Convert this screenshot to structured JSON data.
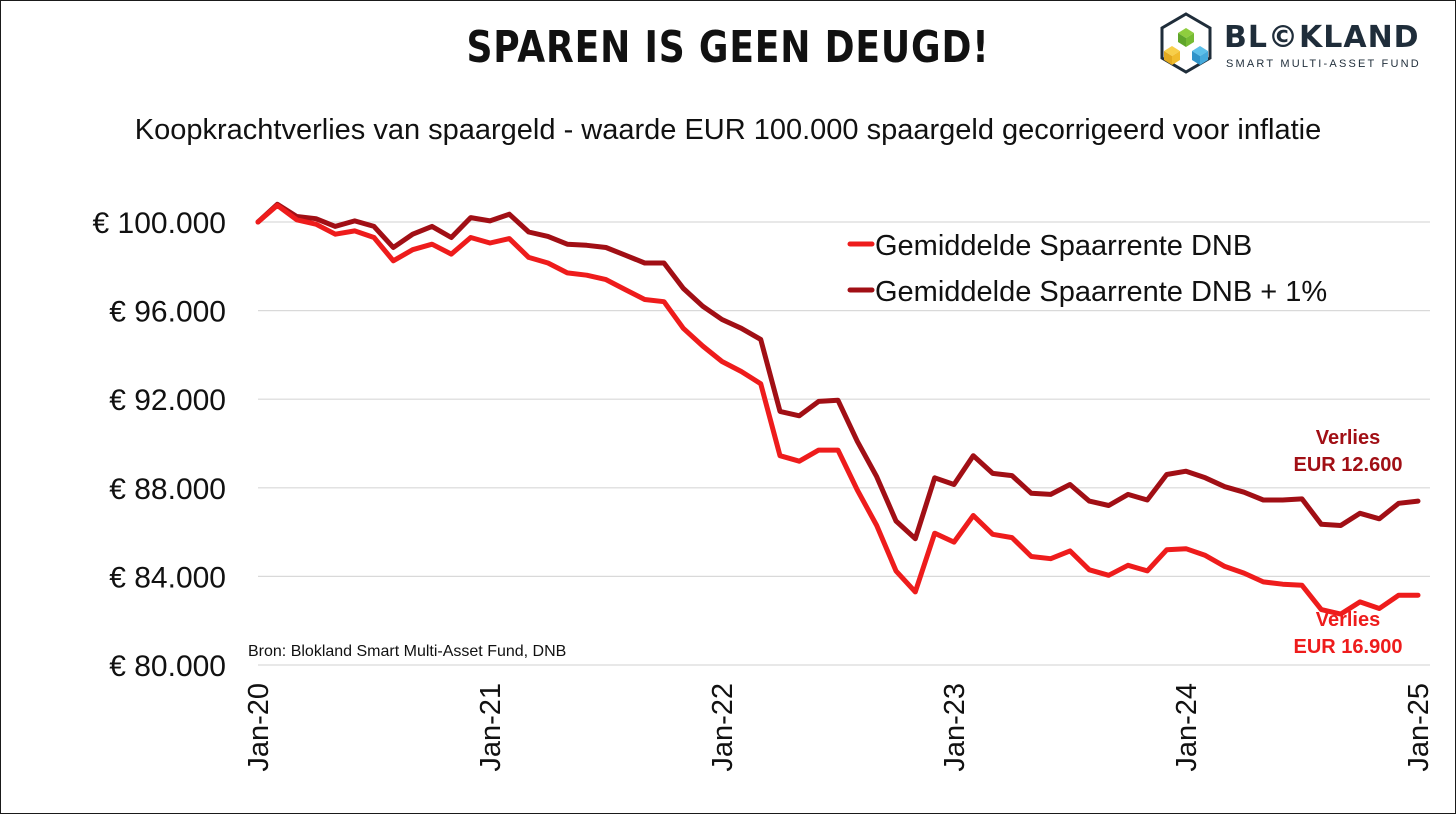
{
  "header": {
    "title": "SPAREN IS GEEN DEUGD!",
    "subtitle": "Koopkrachtverlies van spaargeld - waarde EUR 100.000 spaargeld gecorrigeerd voor inflatie"
  },
  "logo": {
    "name": "BL©KLAND",
    "tagline": "SMART MULTI-ASSET FUND"
  },
  "source_note": "Bron: Blokland Smart Multi-Asset Fund, DNB",
  "colors": {
    "series_dnb": "#ee1c1c",
    "series_dnb_plus": "#a10f15",
    "gridline": "#d9d9d9",
    "text": "#111111"
  },
  "chart_data": {
    "type": "line",
    "title": "Koopkrachtverlies van spaargeld - waarde EUR 100.000 spaargeld gecorrigeerd voor inflatie",
    "xlabel": "",
    "ylabel": "",
    "frequency": "monthly",
    "x_start": "Jan-20",
    "x_end": "Jan-25",
    "xlim": [
      0,
      60
    ],
    "ylim": [
      80000,
      100000
    ],
    "yticks": [
      80000,
      84000,
      88000,
      92000,
      96000,
      100000
    ],
    "ytick_labels": [
      "€ 80.000",
      "€ 84.000",
      "€ 88.000",
      "€ 92.000",
      "€ 96.000",
      "€ 100.000"
    ],
    "xticks": [
      0,
      12,
      24,
      36,
      48,
      60
    ],
    "xtick_labels": [
      "Jan-20",
      "Jan-21",
      "Jan-22",
      "Jan-23",
      "Jan-24",
      "Jan-25"
    ],
    "grid": true,
    "legend_position": "top-right",
    "series": [
      {
        "name": "Gemiddelde Spaarrente DNB",
        "color": "#ee1c1c",
        "values": [
          100000,
          100750,
          100100,
          99900,
          99450,
          99600,
          99300,
          98250,
          98750,
          99000,
          98550,
          99300,
          99050,
          99250,
          98400,
          98150,
          97700,
          97600,
          97400,
          96950,
          96500,
          96400,
          95200,
          94400,
          93700,
          93250,
          92700,
          89450,
          89200,
          89700,
          89700,
          87900,
          86300,
          84250,
          83300,
          85950,
          85550,
          86750,
          85900,
          85750,
          84900,
          84800,
          85150,
          84300,
          84050,
          84500,
          84250,
          85200,
          85250,
          84950,
          84450,
          84150,
          83750,
          83650,
          83600,
          82500,
          82300,
          82850,
          82550,
          83150,
          83150
        ]
      },
      {
        "name": "Gemiddelde Spaarrente DNB + 1%",
        "color": "#a10f15",
        "values": [
          100000,
          100800,
          100250,
          100150,
          99800,
          100050,
          99800,
          98850,
          99450,
          99800,
          99300,
          100200,
          100050,
          100350,
          99550,
          99350,
          99000,
          98950,
          98850,
          98500,
          98150,
          98150,
          97000,
          96200,
          95600,
          95200,
          94700,
          91450,
          91250,
          91900,
          91950,
          90100,
          88500,
          86500,
          85700,
          88450,
          88150,
          89450,
          88650,
          88550,
          87750,
          87700,
          88150,
          87400,
          87200,
          87700,
          87450,
          88600,
          88750,
          88450,
          88050,
          87800,
          87450,
          87450,
          87500,
          86350,
          86300,
          86850,
          86600,
          87300,
          87400
        ]
      }
    ],
    "annotations": [
      {
        "series": 1,
        "line1": "Verlies",
        "line2": "EUR 12.600"
      },
      {
        "series": 0,
        "line1": "Verlies",
        "line2": "EUR 16.900"
      }
    ]
  }
}
